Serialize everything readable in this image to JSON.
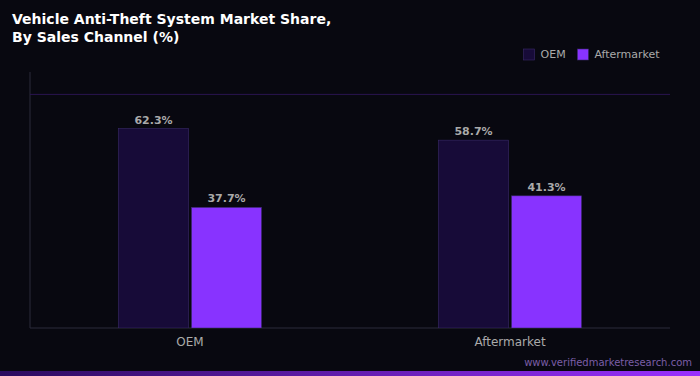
{
  "chart_data": {
    "type": "bar",
    "title": "Vehicle Anti-Theft System Market Share,\nBy Sales Channel (%)",
    "source": "www.verifiedmarketresearch.com",
    "categories": [
      "OEM",
      "Aftermarket"
    ],
    "series": [
      {
        "name": "OEM",
        "color": "#170b38",
        "values": [
          62.3,
          58.7
        ],
        "value_labels": [
          "62.3%",
          "58.7%"
        ]
      },
      {
        "name": "Aftermarket",
        "color": "#8833ff",
        "values": [
          37.7,
          41.3
        ],
        "value_labels": [
          "37.7%",
          "41.3%"
        ]
      }
    ],
    "ylim": [
      0,
      80
    ],
    "reference_line": 73,
    "legend": "upper right",
    "data_labels": true,
    "tick_labels": "x",
    "grid": false
  }
}
